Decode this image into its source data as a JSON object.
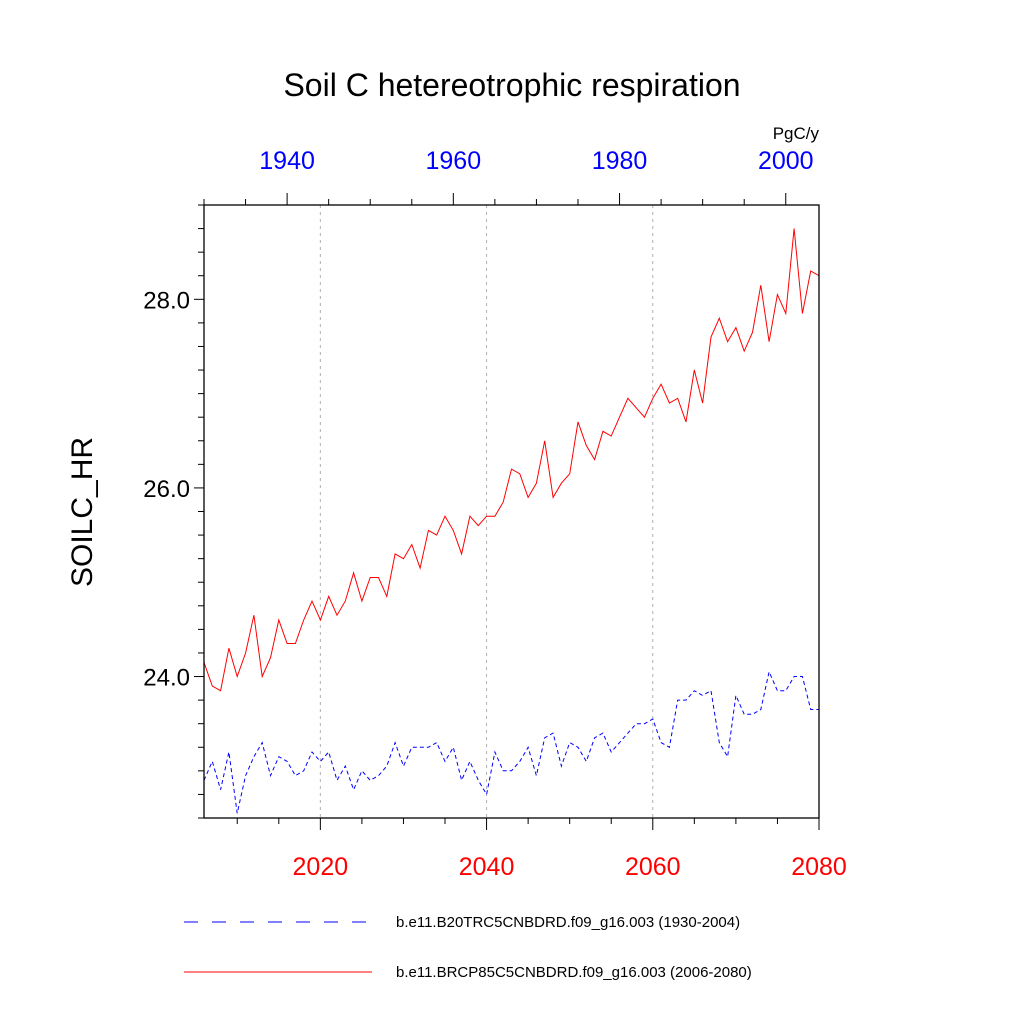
{
  "chart_data": {
    "type": "line",
    "title": "Soil C hetereotrophic respiration",
    "units": "PgC/y",
    "ylabel": "SOILC_HR",
    "ylim": [
      22.5,
      29.0
    ],
    "yticks": [
      24.0,
      26.0,
      28.0
    ],
    "grid": "vertical dotted lines at bottom-axis major ticks",
    "legend": "below plot",
    "x_bottom": {
      "color": "#ff0000",
      "range": [
        2006,
        2080
      ],
      "ticks": [
        2020,
        2040,
        2060,
        2080
      ]
    },
    "x_top": {
      "color": "#0000ff",
      "range": [
        1930,
        2004
      ],
      "ticks": [
        1940,
        1960,
        1980,
        2000
      ]
    },
    "series": [
      {
        "name": "b.e11.B20TRC5CNBDRD.f09_g16.003 (1930-2004)",
        "color": "#0000ff",
        "dash": "dashed",
        "axis": "top",
        "x_start": 1930,
        "values": [
          22.9,
          23.1,
          22.8,
          23.2,
          22.55,
          22.95,
          23.15,
          23.3,
          22.95,
          23.15,
          23.1,
          22.95,
          23.0,
          23.2,
          23.1,
          23.2,
          22.9,
          23.05,
          22.8,
          23.0,
          22.9,
          22.95,
          23.05,
          23.3,
          23.05,
          23.25,
          23.25,
          23.25,
          23.3,
          23.1,
          23.25,
          22.9,
          23.1,
          22.9,
          22.75,
          23.2,
          23.0,
          23.0,
          23.1,
          23.25,
          22.95,
          23.35,
          23.4,
          23.05,
          23.3,
          23.25,
          23.1,
          23.35,
          23.4,
          23.2,
          23.3,
          23.4,
          23.5,
          23.5,
          23.55,
          23.3,
          23.25,
          23.75,
          23.75,
          23.85,
          23.8,
          23.85,
          23.3,
          23.15,
          23.8,
          23.6,
          23.6,
          23.65,
          24.05,
          23.85,
          23.85,
          24.0,
          24.0,
          23.65,
          23.65
        ]
      },
      {
        "name": "b.e11.BRCP85C5CNBDRD.f09_g16.003 (2006-2080)",
        "color": "#ff0000",
        "dash": "solid",
        "axis": "bottom",
        "x_start": 2006,
        "values": [
          24.15,
          23.9,
          23.85,
          24.3,
          24.0,
          24.25,
          24.65,
          24.0,
          24.2,
          24.6,
          24.35,
          24.35,
          24.6,
          24.8,
          24.6,
          24.85,
          24.65,
          24.8,
          25.1,
          24.8,
          25.05,
          25.05,
          24.85,
          25.3,
          25.25,
          25.4,
          25.15,
          25.55,
          25.5,
          25.7,
          25.55,
          25.3,
          25.7,
          25.6,
          25.7,
          25.7,
          25.85,
          26.2,
          26.15,
          25.9,
          26.05,
          26.5,
          25.9,
          26.05,
          26.15,
          26.7,
          26.45,
          26.3,
          26.6,
          26.55,
          26.75,
          26.95,
          26.85,
          26.75,
          26.95,
          27.1,
          26.9,
          26.95,
          26.7,
          27.25,
          26.9,
          27.6,
          27.8,
          27.55,
          27.7,
          27.45,
          27.65,
          28.15,
          27.55,
          28.05,
          27.85,
          28.75,
          27.85,
          28.3,
          28.25
        ]
      }
    ]
  }
}
